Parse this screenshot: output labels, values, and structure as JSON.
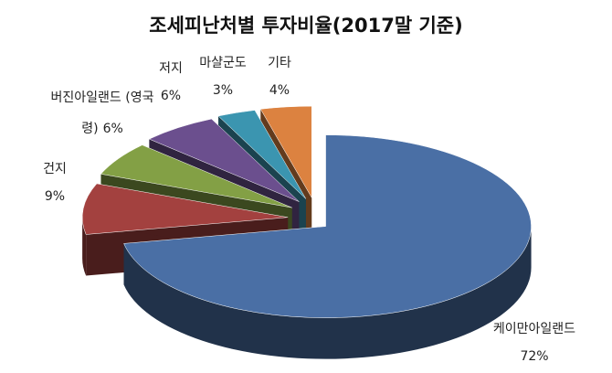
{
  "chart_data": {
    "type": "pie",
    "title": "조세피난처별 투자비율(2017말 기준)",
    "categories": [
      "케이만아일랜드",
      "건지",
      "버진아일랜드 (영국령)",
      "저지",
      "마샬군도",
      "기타"
    ],
    "values": [
      72,
      9,
      6,
      6,
      3,
      4
    ],
    "value_labels": [
      "72%",
      "9%",
      "6%",
      "6%",
      "3%",
      "4%"
    ],
    "colors": [
      "#4a6fa5",
      "#a3413f",
      "#83a045",
      "#6b4f8e",
      "#3b95b0",
      "#dc8240"
    ]
  }
}
